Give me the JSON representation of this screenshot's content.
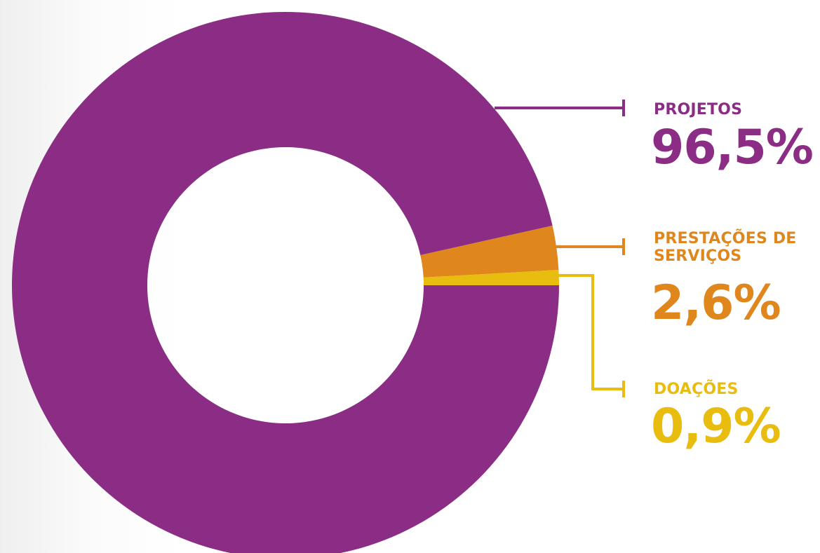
{
  "chart_data": {
    "type": "pie",
    "variant": "donut",
    "title": "",
    "legend_position": "right",
    "series": [
      {
        "name": "PROJETOS",
        "value": 96.5,
        "value_label": "96,5%",
        "color": "#8b2d84"
      },
      {
        "name": "PRESTAÇÕES DE\nSERVIÇOS",
        "value": 2.6,
        "value_label": "2,6%",
        "color": "#df861d"
      },
      {
        "name": "DOAÇÕES",
        "value": 0.9,
        "value_label": "0,9%",
        "color": "#e8bd0f"
      }
    ]
  }
}
